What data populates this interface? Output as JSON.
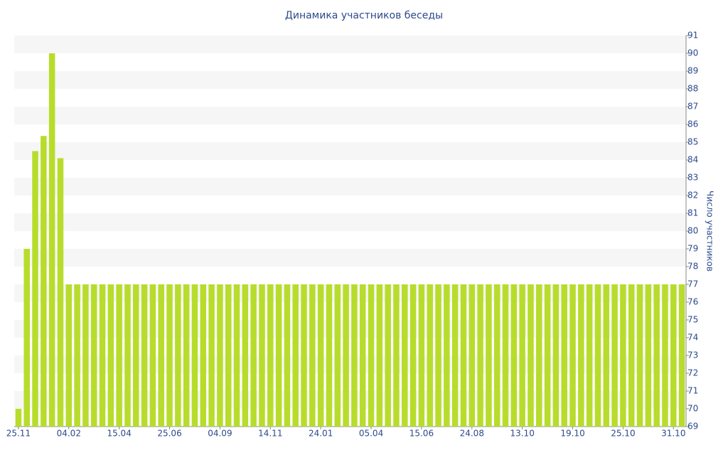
{
  "chart_data": {
    "type": "bar",
    "title": "Динамика участников беседы",
    "y_label": "Число участников",
    "color": "#b8dc2c",
    "grid": "alternating-bands",
    "categories": [
      "25.11",
      null,
      null,
      null,
      null,
      null,
      "04.02",
      null,
      null,
      null,
      null,
      null,
      "15.04",
      null,
      null,
      null,
      null,
      null,
      "25.06",
      null,
      null,
      null,
      null,
      null,
      "04.09",
      null,
      null,
      null,
      null,
      null,
      "14.11",
      null,
      null,
      null,
      null,
      null,
      "24.01",
      null,
      null,
      null,
      null,
      null,
      "05.04",
      null,
      null,
      null,
      null,
      null,
      "15.06",
      null,
      null,
      null,
      null,
      null,
      "24.08",
      null,
      null,
      null,
      null,
      null,
      "13.10",
      null,
      null,
      null,
      null,
      null,
      "19.10",
      null,
      null,
      null,
      null,
      null,
      "25.10",
      null,
      null,
      null,
      null,
      null,
      "31.10",
      null
    ],
    "values": [
      70,
      79,
      84.5,
      85.35,
      90,
      84.1,
      77,
      77,
      77,
      77,
      77,
      77,
      77,
      77,
      77,
      77,
      77,
      77,
      77,
      77,
      77,
      77,
      77,
      77,
      77,
      77,
      77,
      77,
      77,
      77,
      77,
      77,
      77,
      77,
      77,
      77,
      77,
      77,
      77,
      77,
      77,
      77,
      77,
      77,
      77,
      77,
      77,
      77,
      77,
      77,
      77,
      77,
      77,
      77,
      77,
      77,
      77,
      77,
      77,
      77,
      77,
      77,
      77,
      77,
      77,
      77,
      77,
      77,
      77,
      77,
      77,
      77,
      77,
      77,
      77,
      77,
      77,
      77,
      77,
      77
    ],
    "ylim": [
      69,
      91
    ],
    "yticks": [
      69,
      70,
      71,
      72,
      73,
      74,
      75,
      76,
      77,
      78,
      79,
      80,
      81,
      82,
      83,
      84,
      85,
      86,
      87,
      88,
      89,
      90,
      91
    ]
  }
}
